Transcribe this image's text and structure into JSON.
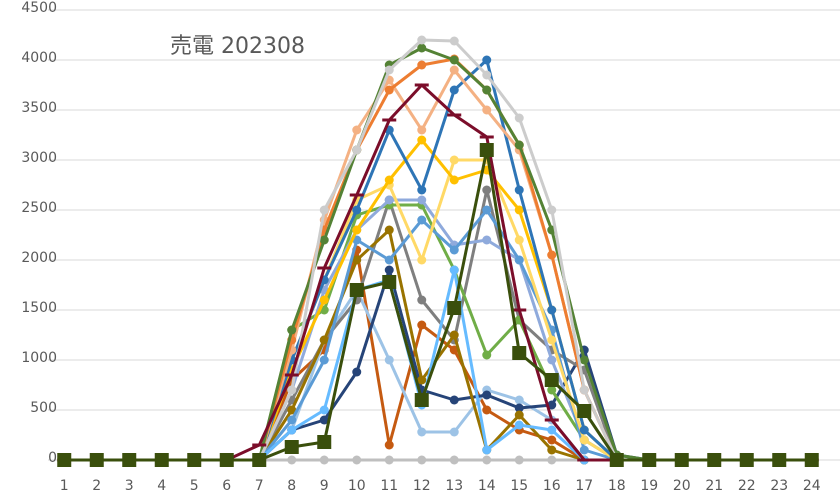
{
  "chart_data": {
    "type": "line",
    "title": "売電 202308",
    "categories": [
      1,
      2,
      3,
      4,
      5,
      6,
      7,
      8,
      9,
      10,
      11,
      12,
      13,
      14,
      15,
      16,
      17,
      18,
      19,
      20,
      21,
      22,
      23,
      24
    ],
    "ylim": [
      0,
      4500
    ],
    "yticks": [
      0,
      500,
      1000,
      1500,
      2000,
      2500,
      3000,
      3500,
      4000,
      4500
    ],
    "grid": true,
    "series": [
      {
        "color": "#bfbfbf",
        "marker": "circle",
        "values": [
          0,
          0,
          0,
          0,
          0,
          0,
          0,
          0,
          0,
          0,
          0,
          0,
          0,
          0,
          0,
          0,
          0,
          0,
          0,
          0,
          0,
          0,
          0,
          0
        ]
      },
      {
        "color": "#c55a11",
        "marker": "circle",
        "values": [
          0,
          0,
          0,
          0,
          0,
          0,
          0,
          800,
          1100,
          2100,
          150,
          1350,
          1100,
          500,
          300,
          200,
          0,
          0,
          0,
          0,
          0,
          0,
          0,
          0
        ]
      },
      {
        "color": "#9dc3e6",
        "marker": "circle",
        "values": [
          0,
          0,
          0,
          0,
          0,
          0,
          0,
          300,
          1200,
          1700,
          1000,
          280,
          280,
          700,
          600,
          400,
          0,
          0,
          0,
          0,
          0,
          0,
          0,
          0
        ]
      },
      {
        "color": "#264478",
        "marker": "circle",
        "values": [
          0,
          0,
          0,
          0,
          0,
          0,
          0,
          300,
          400,
          880,
          1900,
          700,
          600,
          650,
          520,
          550,
          1100,
          50,
          0,
          0,
          0,
          0,
          0,
          0
        ]
      },
      {
        "color": "#7f7f7f",
        "marker": "circle",
        "values": [
          0,
          0,
          0,
          0,
          0,
          0,
          0,
          600,
          1200,
          1600,
          2600,
          1600,
          1200,
          2700,
          1400,
          1100,
          900,
          0,
          0,
          0,
          0,
          0,
          0,
          0
        ]
      },
      {
        "color": "#997300",
        "marker": "circle",
        "values": [
          0,
          0,
          0,
          0,
          0,
          0,
          0,
          500,
          1200,
          2000,
          2300,
          800,
          1250,
          100,
          450,
          100,
          0,
          0,
          0,
          0,
          0,
          0,
          0,
          0
        ]
      },
      {
        "color": "#70ad47",
        "marker": "circle",
        "values": [
          0,
          0,
          0,
          0,
          0,
          0,
          0,
          1300,
          1500,
          2450,
          2550,
          2550,
          1900,
          1050,
          1400,
          700,
          200,
          0,
          0,
          0,
          0,
          0,
          0,
          0
        ]
      },
      {
        "color": "#8faadc",
        "marker": "circle",
        "values": [
          0,
          0,
          0,
          0,
          0,
          0,
          0,
          700,
          1700,
          2300,
          2600,
          2600,
          2150,
          2200,
          2000,
          1000,
          200,
          0,
          0,
          0,
          0,
          0,
          0,
          0
        ]
      },
      {
        "color": "#5b9bd5",
        "marker": "circle",
        "values": [
          0,
          0,
          0,
          0,
          0,
          0,
          0,
          400,
          1000,
          2200,
          2000,
          2400,
          2100,
          2500,
          2000,
          1300,
          100,
          0,
          0,
          0,
          0,
          0,
          0,
          0
        ]
      },
      {
        "color": "#66bbff",
        "marker": "circle",
        "values": [
          0,
          0,
          0,
          0,
          0,
          0,
          0,
          300,
          500,
          1700,
          1800,
          550,
          1900,
          100,
          350,
          300,
          0,
          0,
          0,
          0,
          0,
          0,
          0,
          0
        ]
      },
      {
        "color": "#ffd966",
        "marker": "circle",
        "values": [
          0,
          0,
          0,
          0,
          0,
          0,
          0,
          1000,
          1800,
          2600,
          2750,
          2000,
          3000,
          3000,
          2200,
          1200,
          200,
          0,
          0,
          0,
          0,
          0,
          0,
          0
        ]
      },
      {
        "color": "#ffc000",
        "marker": "circle",
        "values": [
          0,
          0,
          0,
          0,
          0,
          0,
          0,
          900,
          1600,
          2300,
          2800,
          3200,
          2800,
          2900,
          2500,
          1500,
          300,
          0,
          0,
          0,
          0,
          0,
          0,
          0
        ]
      },
      {
        "color": "#2e75b6",
        "marker": "circle",
        "values": [
          0,
          0,
          0,
          0,
          0,
          0,
          0,
          1000,
          1800,
          2500,
          3300,
          2700,
          3700,
          4000,
          2700,
          1500,
          300,
          0,
          0,
          0,
          0,
          0,
          0,
          0
        ]
      },
      {
        "color": "#f4b183",
        "marker": "circle",
        "values": [
          0,
          0,
          0,
          0,
          0,
          0,
          0,
          1100,
          2400,
          3300,
          3800,
          3300,
          3900,
          3500,
          3100,
          2050,
          700,
          0,
          0,
          0,
          0,
          0,
          0,
          0
        ]
      },
      {
        "color": "#ed7d31",
        "marker": "circle",
        "values": [
          0,
          0,
          0,
          0,
          0,
          0,
          0,
          1200,
          2300,
          3100,
          3700,
          3950,
          4010,
          3700,
          3150,
          2050,
          700,
          0,
          0,
          0,
          0,
          0,
          0,
          0
        ]
      },
      {
        "color": "#548235",
        "marker": "circle",
        "values": [
          0,
          0,
          0,
          0,
          0,
          0,
          0,
          1300,
          2200,
          3100,
          3950,
          4120,
          4000,
          3700,
          3150,
          2300,
          1000,
          50,
          0,
          0,
          0,
          0,
          0,
          0
        ]
      },
      {
        "color": "#cccccc",
        "marker": "circle",
        "values": [
          0,
          0,
          0,
          0,
          0,
          0,
          0,
          700,
          2500,
          3100,
          3900,
          4200,
          4190,
          3850,
          3420,
          2500,
          700,
          0,
          0,
          0,
          0,
          0,
          0,
          0
        ]
      },
      {
        "color": "#7b0d2a",
        "marker": "dash",
        "values": [
          0,
          0,
          0,
          0,
          0,
          0,
          150,
          850,
          1920,
          2650,
          3400,
          3750,
          3450,
          3230,
          1500,
          400,
          0,
          0,
          0,
          0,
          0,
          0,
          0,
          0
        ]
      },
      {
        "color": "#3a4f0c",
        "marker": "square",
        "values": [
          0,
          0,
          0,
          0,
          0,
          0,
          0,
          130,
          180,
          1700,
          1780,
          600,
          1520,
          3100,
          1070,
          800,
          490,
          0,
          0,
          0,
          0,
          0,
          0,
          0
        ]
      }
    ]
  }
}
